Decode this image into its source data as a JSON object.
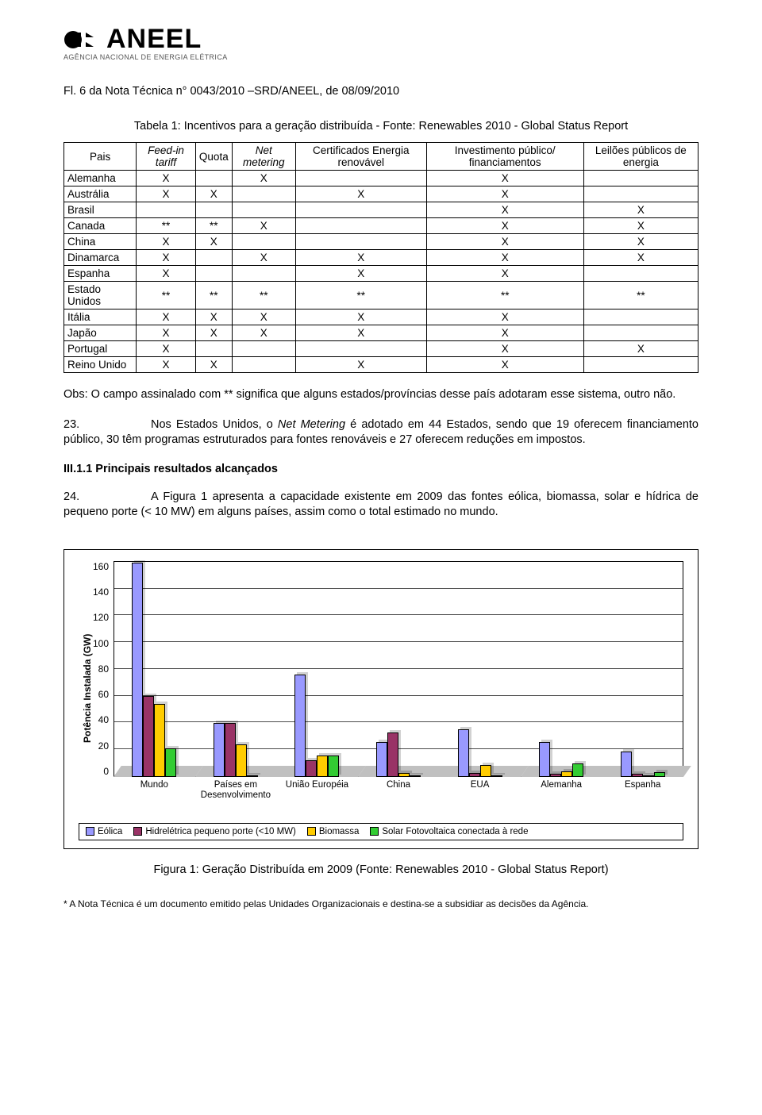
{
  "logo": {
    "brand": "ANEEL",
    "tagline": "AGÊNCIA NACIONAL DE ENERGIA ELÉTRICA"
  },
  "page_reference": "Fl. 6 da Nota Técnica n° 0043/2010 –SRD/ANEEL, de 08/09/2010",
  "table_title": "Tabela 1: Incentivos para a geração distribuída - Fonte: Renewables 2010 - Global Status Report",
  "table": {
    "headers": {
      "c0": "Pais",
      "c1": "Feed-in tariff",
      "c2": "Quota",
      "c3": "Net metering",
      "c4": "Certificados Energia renovável",
      "c5": "Investimento público/ financiamentos",
      "c6": "Leilões públicos de energia"
    },
    "rows": [
      {
        "country": "Alemanha",
        "c1": "X",
        "c2": "",
        "c3": "X",
        "c4": "",
        "c5": "X",
        "c6": ""
      },
      {
        "country": "Austrália",
        "c1": "X",
        "c2": "X",
        "c3": "",
        "c4": "X",
        "c5": "X",
        "c6": ""
      },
      {
        "country": "Brasil",
        "c1": "",
        "c2": "",
        "c3": "",
        "c4": "",
        "c5": "X",
        "c6": "X"
      },
      {
        "country": "Canada",
        "c1": "**",
        "c2": "**",
        "c3": "X",
        "c4": "",
        "c5": "X",
        "c6": "X"
      },
      {
        "country": "China",
        "c1": "X",
        "c2": "X",
        "c3": "",
        "c4": "",
        "c5": "X",
        "c6": "X"
      },
      {
        "country": "Dinamarca",
        "c1": "X",
        "c2": "",
        "c3": "X",
        "c4": "X",
        "c5": "X",
        "c6": "X"
      },
      {
        "country": "Espanha",
        "c1": "X",
        "c2": "",
        "c3": "",
        "c4": "X",
        "c5": "X",
        "c6": ""
      },
      {
        "country": "Estado Unidos",
        "c1": "**",
        "c2": "**",
        "c3": "**",
        "c4": "**",
        "c5": "**",
        "c6": "**"
      },
      {
        "country": "Itália",
        "c1": "X",
        "c2": "X",
        "c3": "X",
        "c4": "X",
        "c5": "X",
        "c6": ""
      },
      {
        "country": "Japão",
        "c1": "X",
        "c2": "X",
        "c3": "X",
        "c4": "X",
        "c5": "X",
        "c6": ""
      },
      {
        "country": "Portugal",
        "c1": "X",
        "c2": "",
        "c3": "",
        "c4": "",
        "c5": "X",
        "c6": "X"
      },
      {
        "country": "Reino Unido",
        "c1": "X",
        "c2": "X",
        "c3": "",
        "c4": "X",
        "c5": "X",
        "c6": ""
      }
    ]
  },
  "obs_text": "Obs: O campo assinalado com ** significa que alguns estados/províncias desse país adotaram esse sistema, outro não.",
  "para23_num": "23.",
  "para23_text": "Nos Estados Unidos, o Net Metering é adotado em 44 Estados, sendo que 19 oferecem financiamento público, 30 têm programas estruturados para fontes renováveis e 27 oferecem reduções em impostos.",
  "subheading": "III.1.1 Principais resultados alcançados",
  "para24_num": "24.",
  "para24_text": "A Figura 1 apresenta a capacidade existente em 2009 das fontes eólica, biomassa, solar e hídrica de pequeno porte (< 10 MW) em alguns países, assim como o total estimado no mundo.",
  "chart": {
    "type": "grouped-bar-3d",
    "y_label": "Potência Instalada (GW)",
    "y_max": 160,
    "y_ticks": [
      0,
      20,
      40,
      60,
      80,
      100,
      120,
      140,
      160
    ],
    "categories": [
      "Mundo",
      "Países em Desenvolvimento",
      "União Européia",
      "China",
      "EUA",
      "Alemanha",
      "Espanha"
    ],
    "series": [
      {
        "name": "Eólica",
        "color": "#9999ff",
        "values": [
          159,
          40,
          76,
          26,
          35,
          26,
          19
        ]
      },
      {
        "name": "Hidrelétrica pequeno porte (<10 MW)",
        "color": "#993366",
        "values": [
          60,
          40,
          12,
          33,
          3,
          2,
          2
        ]
      },
      {
        "name": "Biomassa",
        "color": "#ffcc00",
        "values": [
          54,
          24,
          16,
          3,
          9,
          4,
          0.5
        ]
      },
      {
        "name": "Solar Fotovoltaica conectada à rede",
        "color": "#33cc33",
        "values": [
          21,
          1,
          16,
          0.3,
          1.2,
          10,
          3.4
        ]
      }
    ]
  },
  "figure_caption": "Figura 1: Geração Distribuída em 2009 (Fonte: Renewables 2010 - Global Status Report)",
  "footnote": "* A Nota Técnica é um documento emitido pelas Unidades Organizacionais e destina-se a subsidiar as decisões da Agência."
}
